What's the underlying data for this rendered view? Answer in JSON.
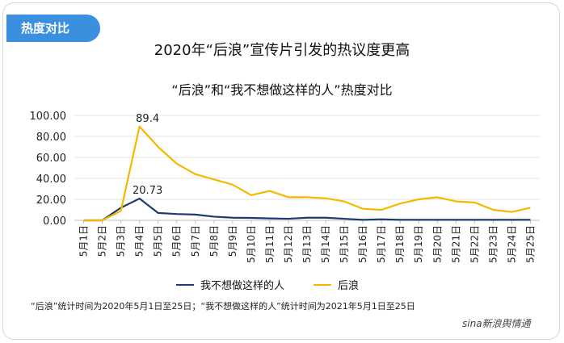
{
  "tag": "热度对比",
  "title": "2020年“后浪”宣传片引发的热议度更高",
  "colors": {
    "accent": "#3b8fdf",
    "series1": "#1f3a6e",
    "series2": "#f5b800"
  },
  "chart_data": {
    "type": "line",
    "title": "“后浪”和“我不想做这样的人”热度对比",
    "xlabel": "",
    "ylabel": "",
    "ylim": [
      0,
      100
    ],
    "yticks": [
      "0.00",
      "20.00",
      "40.00",
      "60.00",
      "80.00",
      "100.00"
    ],
    "categories": [
      "5月1日",
      "5月2日",
      "5月3日",
      "5月4日",
      "5月5日",
      "5月6日",
      "5月7日",
      "5月8日",
      "5月9日",
      "5月10日",
      "5月11日",
      "5月12日",
      "5月13日",
      "5月14日",
      "5月15日",
      "5月16日",
      "5月17日",
      "5月18日",
      "5月19日",
      "5月20日",
      "5月21日",
      "5月22日",
      "5月23日",
      "5月24日",
      "5月25日"
    ],
    "series": [
      {
        "name": "我不想做这样的人",
        "values": [
          0,
          0,
          12,
          20.73,
          7,
          6,
          5.5,
          3.5,
          2.5,
          2.3,
          1.8,
          1.5,
          2.5,
          2.5,
          1.5,
          0.5,
          1,
          0.5,
          0.5,
          0.5,
          0.5,
          0.5,
          0.5,
          0.5,
          0.5
        ]
      },
      {
        "name": "后浪",
        "values": [
          0,
          0,
          9,
          89.4,
          70,
          54,
          44,
          39,
          34,
          24,
          28,
          22,
          22,
          21,
          18,
          11,
          10,
          16,
          20,
          22,
          18,
          17,
          10,
          8,
          12
        ]
      }
    ],
    "data_labels": [
      {
        "series": 0,
        "index": 3,
        "text": "20.73"
      },
      {
        "series": 1,
        "index": 3,
        "text": "89.4"
      }
    ]
  },
  "note": "“后浪”统计时间为2020年5月1日至25日；“我不想做这样的人”统计时间为2021年5月1日至25日",
  "watermark": "sina新浪舆情通"
}
